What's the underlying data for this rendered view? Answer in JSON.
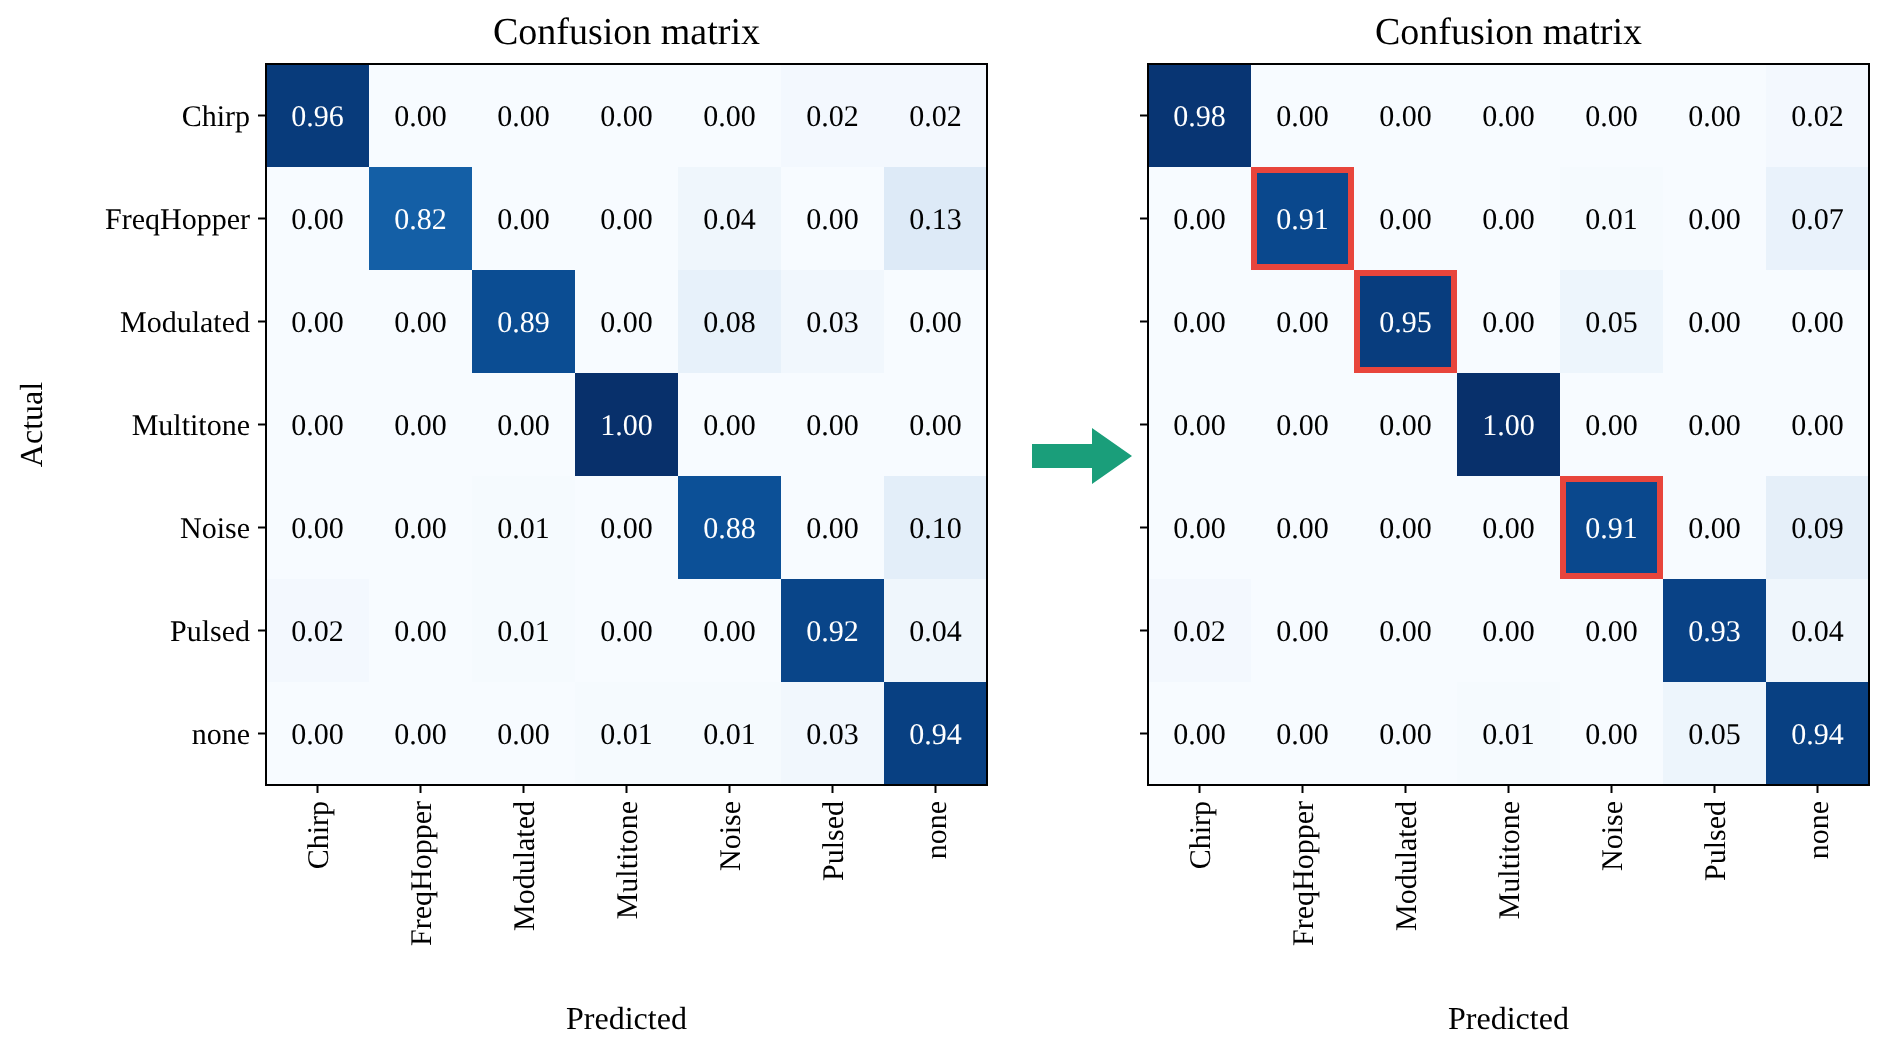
{
  "chart_data": [
    {
      "type": "heatmap",
      "title": "Confusion matrix",
      "xlabel": "Predicted",
      "ylabel": "Actual",
      "categories": [
        "Chirp",
        "FreqHopper",
        "Modulated",
        "Multitone",
        "Noise",
        "Pulsed",
        "none"
      ],
      "y_categories": [
        "Chirp",
        "FreqHopper",
        "Modulated",
        "Multitone",
        "Noise",
        "Pulsed",
        "none"
      ],
      "data_labels": true,
      "cells": [
        [
          0.96,
          0.0,
          0.0,
          0.0,
          0.0,
          0.02,
          0.02
        ],
        [
          0.0,
          0.82,
          0.0,
          0.0,
          0.04,
          0.0,
          0.13
        ],
        [
          0.0,
          0.0,
          0.89,
          0.0,
          0.08,
          0.03,
          0.0
        ],
        [
          0.0,
          0.0,
          0.0,
          1.0,
          0.0,
          0.0,
          0.0
        ],
        [
          0.0,
          0.0,
          0.01,
          0.0,
          0.88,
          0.0,
          0.1
        ],
        [
          0.02,
          0.0,
          0.01,
          0.0,
          0.0,
          0.92,
          0.04
        ],
        [
          0.0,
          0.0,
          0.0,
          0.01,
          0.01,
          0.03,
          0.94
        ]
      ],
      "cell_labels": [
        [
          "0.96",
          "0.00",
          "0.00",
          "0.00",
          "0.00",
          "0.02",
          "0.02"
        ],
        [
          "0.00",
          "0.82",
          "0.00",
          "0.00",
          "0.04",
          "0.00",
          "0.13"
        ],
        [
          "0.00",
          "0.00",
          "0.89",
          "0.00",
          "0.08",
          "0.03",
          "0.00"
        ],
        [
          "0.00",
          "0.00",
          "0.00",
          "1.00",
          "0.00",
          "0.00",
          "0.00"
        ],
        [
          "0.00",
          "0.00",
          "0.01",
          "0.00",
          "0.88",
          "0.00",
          "0.10"
        ],
        [
          "0.02",
          "0.00",
          "0.01",
          "0.00",
          "0.00",
          "0.92",
          "0.04"
        ],
        [
          "0.00",
          "0.00",
          "0.00",
          "0.01",
          "0.01",
          "0.03",
          "0.94"
        ]
      ]
    },
    {
      "type": "heatmap",
      "title": "Confusion matrix",
      "xlabel": "Predicted",
      "categories": [
        "Chirp",
        "FreqHopper",
        "Modulated",
        "Multitone",
        "Noise",
        "Pulsed",
        "none"
      ],
      "y_categories": [
        null,
        null,
        null,
        null,
        null,
        null,
        null
      ],
      "tick_labels": "x",
      "data_labels": true,
      "cells": [
        [
          0.98,
          0.0,
          0.0,
          0.0,
          0.0,
          0.0,
          0.02
        ],
        [
          0.0,
          0.91,
          0.0,
          0.0,
          0.01,
          0.0,
          0.07
        ],
        [
          0.0,
          0.0,
          0.95,
          0.0,
          0.05,
          0.0,
          0.0
        ],
        [
          0.0,
          0.0,
          0.0,
          1.0,
          0.0,
          0.0,
          0.0
        ],
        [
          0.0,
          0.0,
          0.0,
          0.0,
          0.91,
          0.0,
          0.09
        ],
        [
          0.02,
          0.0,
          0.0,
          0.0,
          0.0,
          0.93,
          0.04
        ],
        [
          0.0,
          0.0,
          0.0,
          0.01,
          0.0,
          0.05,
          0.94
        ]
      ],
      "cell_labels": [
        [
          "0.98",
          "0.00",
          "0.00",
          "0.00",
          "0.00",
          "0.00",
          "0.02"
        ],
        [
          "0.00",
          "0.91",
          "0.00",
          "0.00",
          "0.01",
          "0.00",
          "0.07"
        ],
        [
          "0.00",
          "0.00",
          "0.95",
          "0.00",
          "0.05",
          "0.00",
          "0.00"
        ],
        [
          "0.00",
          "0.00",
          "0.00",
          "1.00",
          "0.00",
          "0.00",
          "0.00"
        ],
        [
          "0.00",
          "0.00",
          "0.00",
          "0.00",
          "0.91",
          "0.00",
          "0.09"
        ],
        [
          "0.02",
          "0.00",
          "0.00",
          "0.00",
          "0.00",
          "0.93",
          "0.04"
        ],
        [
          "0.00",
          "0.00",
          "0.00",
          "0.01",
          "0.00",
          "0.05",
          "0.94"
        ]
      ]
    }
  ]
}
